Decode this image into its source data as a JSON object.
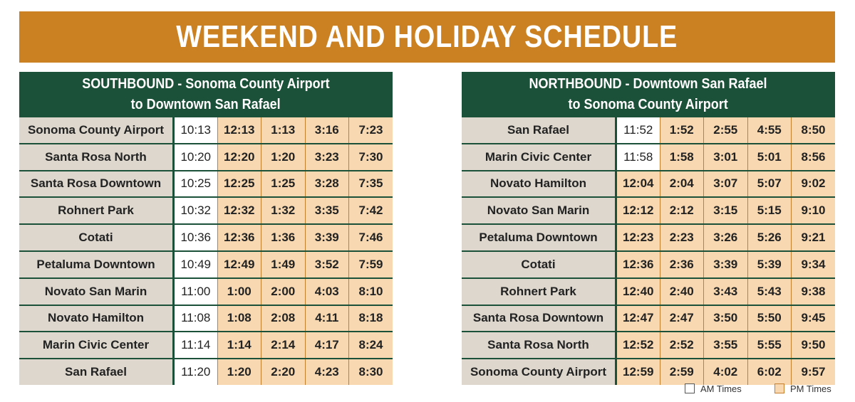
{
  "banner": {
    "title": "WEEKEND AND HOLIDAY SCHEDULE"
  },
  "colors": {
    "banner": "#cb8121",
    "header": "#1b5138",
    "stop_cell": "#ddd7cd",
    "pm_cell": "#f8d8b0",
    "am_cell": "#ffffff"
  },
  "southbound": {
    "title_line1": "SOUTHBOUND - Sonoma County Airport",
    "title_line2": "to Downtown San Rafael",
    "rows": [
      {
        "stop": "Sonoma County Airport",
        "times": [
          "10:13",
          "12:13",
          "1:13",
          "3:16",
          "7:23"
        ],
        "periods": [
          "am",
          "pm",
          "pm",
          "pm",
          "pm"
        ]
      },
      {
        "stop": "Santa Rosa North",
        "times": [
          "10:20",
          "12:20",
          "1:20",
          "3:23",
          "7:30"
        ],
        "periods": [
          "am",
          "pm",
          "pm",
          "pm",
          "pm"
        ]
      },
      {
        "stop": "Santa Rosa Downtown",
        "times": [
          "10:25",
          "12:25",
          "1:25",
          "3:28",
          "7:35"
        ],
        "periods": [
          "am",
          "pm",
          "pm",
          "pm",
          "pm"
        ]
      },
      {
        "stop": "Rohnert Park",
        "times": [
          "10:32",
          "12:32",
          "1:32",
          "3:35",
          "7:42"
        ],
        "periods": [
          "am",
          "pm",
          "pm",
          "pm",
          "pm"
        ]
      },
      {
        "stop": "Cotati",
        "times": [
          "10:36",
          "12:36",
          "1:36",
          "3:39",
          "7:46"
        ],
        "periods": [
          "am",
          "pm",
          "pm",
          "pm",
          "pm"
        ]
      },
      {
        "stop": "Petaluma Downtown",
        "times": [
          "10:49",
          "12:49",
          "1:49",
          "3:52",
          "7:59"
        ],
        "periods": [
          "am",
          "pm",
          "pm",
          "pm",
          "pm"
        ]
      },
      {
        "stop": "Novato San Marin",
        "times": [
          "11:00",
          "1:00",
          "2:00",
          "4:03",
          "8:10"
        ],
        "periods": [
          "am",
          "pm",
          "pm",
          "pm",
          "pm"
        ]
      },
      {
        "stop": "Novato Hamilton",
        "times": [
          "11:08",
          "1:08",
          "2:08",
          "4:11",
          "8:18"
        ],
        "periods": [
          "am",
          "pm",
          "pm",
          "pm",
          "pm"
        ]
      },
      {
        "stop": "Marin Civic Center",
        "times": [
          "11:14",
          "1:14",
          "2:14",
          "4:17",
          "8:24"
        ],
        "periods": [
          "am",
          "pm",
          "pm",
          "pm",
          "pm"
        ]
      },
      {
        "stop": "San Rafael",
        "times": [
          "11:20",
          "1:20",
          "2:20",
          "4:23",
          "8:30"
        ],
        "periods": [
          "am",
          "pm",
          "pm",
          "pm",
          "pm"
        ]
      }
    ]
  },
  "northbound": {
    "title_line1": "NORTHBOUND - Downtown San Rafael",
    "title_line2": "to Sonoma County Airport",
    "rows": [
      {
        "stop": "San Rafael",
        "times": [
          "11:52",
          "1:52",
          "2:55",
          "4:55",
          "8:50"
        ],
        "periods": [
          "am",
          "pm",
          "pm",
          "pm",
          "pm"
        ]
      },
      {
        "stop": "Marin Civic Center",
        "times": [
          "11:58",
          "1:58",
          "3:01",
          "5:01",
          "8:56"
        ],
        "periods": [
          "am",
          "pm",
          "pm",
          "pm",
          "pm"
        ]
      },
      {
        "stop": "Novato Hamilton",
        "times": [
          "12:04",
          "2:04",
          "3:07",
          "5:07",
          "9:02"
        ],
        "periods": [
          "pm",
          "pm",
          "pm",
          "pm",
          "pm"
        ]
      },
      {
        "stop": "Novato San Marin",
        "times": [
          "12:12",
          "2:12",
          "3:15",
          "5:15",
          "9:10"
        ],
        "periods": [
          "pm",
          "pm",
          "pm",
          "pm",
          "pm"
        ]
      },
      {
        "stop": "Petaluma Downtown",
        "times": [
          "12:23",
          "2:23",
          "3:26",
          "5:26",
          "9:21"
        ],
        "periods": [
          "pm",
          "pm",
          "pm",
          "pm",
          "pm"
        ]
      },
      {
        "stop": "Cotati",
        "times": [
          "12:36",
          "2:36",
          "3:39",
          "5:39",
          "9:34"
        ],
        "periods": [
          "pm",
          "pm",
          "pm",
          "pm",
          "pm"
        ]
      },
      {
        "stop": "Rohnert Park",
        "times": [
          "12:40",
          "2:40",
          "3:43",
          "5:43",
          "9:38"
        ],
        "periods": [
          "pm",
          "pm",
          "pm",
          "pm",
          "pm"
        ]
      },
      {
        "stop": "Santa Rosa Downtown",
        "times": [
          "12:47",
          "2:47",
          "3:50",
          "5:50",
          "9:45"
        ],
        "periods": [
          "pm",
          "pm",
          "pm",
          "pm",
          "pm"
        ]
      },
      {
        "stop": "Santa Rosa North",
        "times": [
          "12:52",
          "2:52",
          "3:55",
          "5:55",
          "9:50"
        ],
        "periods": [
          "pm",
          "pm",
          "pm",
          "pm",
          "pm"
        ]
      },
      {
        "stop": "Sonoma County Airport",
        "times": [
          "12:59",
          "2:59",
          "4:02",
          "6:02",
          "9:57"
        ],
        "periods": [
          "pm",
          "pm",
          "pm",
          "pm",
          "pm"
        ]
      }
    ]
  },
  "legend": {
    "am_label": "AM Times",
    "pm_label": "PM Times"
  }
}
